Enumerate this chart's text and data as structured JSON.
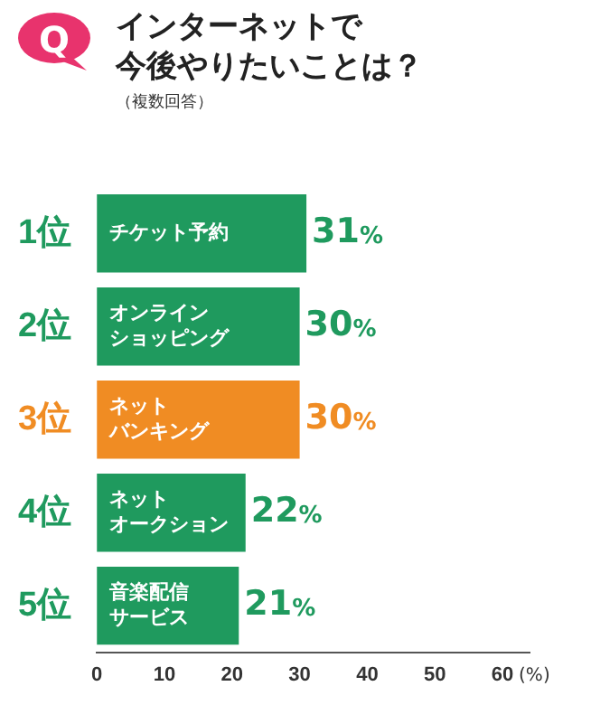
{
  "chart_data": {
    "type": "bar",
    "orientation": "horizontal",
    "title": "インターネットで今後やりたいことは？",
    "subtitle": "（複数回答）",
    "xlabel": "(%)",
    "categories": [
      "1位",
      "2位",
      "3位",
      "4位",
      "5位"
    ],
    "values": [
      31,
      30,
      30,
      22,
      21
    ],
    "colors": [
      "#1f9a5e",
      "#1f9a5e",
      "#f08c23",
      "#1f9a5e",
      "#1f9a5e"
    ],
    "value_labels": [
      "31%",
      "30%",
      "30%",
      "22%",
      "21%"
    ],
    "annotations": [
      "Q",
      {
        "text": "チケット予約",
        "y": "1位"
      },
      {
        "text": "オンラインショッピング",
        "y": "2位"
      },
      {
        "text": "ネットバンキング",
        "y": "3位"
      },
      {
        "text": "ネットオークション",
        "y": "4位"
      },
      {
        "text": "音楽配信サービス",
        "y": "5位"
      }
    ],
    "xlim": [
      0,
      64
    ],
    "xticks": [
      0,
      10,
      20,
      30,
      40,
      50,
      60
    ],
    "grid": false,
    "legend": false
  }
}
